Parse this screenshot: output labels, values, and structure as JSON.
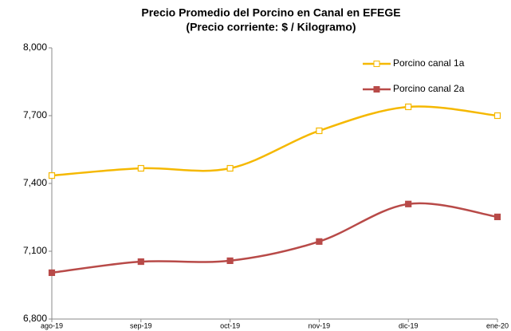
{
  "chart_data": {
    "type": "line",
    "title": "Precio Promedio del Porcino en Canal en EFEGE",
    "subtitle": "(Precio corriente: $ / Kilogramo)",
    "categories": [
      "ago-19",
      "sep-19",
      "oct-19",
      "nov-19",
      "dic-19",
      "ene-20"
    ],
    "series": [
      {
        "name": "Porcino canal 1a",
        "color": "#f5b800",
        "values": [
          7435,
          7467,
          7467,
          7633,
          7739,
          7700
        ]
      },
      {
        "name": "Porcino canal 2a",
        "color": "#b84a48",
        "values": [
          7005,
          7054,
          7058,
          7143,
          7309,
          7252
        ]
      }
    ],
    "ylim": [
      6800,
      8000
    ],
    "yticks": [
      {
        "value": 6800,
        "label": "6,800"
      },
      {
        "value": 7100,
        "label": "7,100"
      },
      {
        "value": 7400,
        "label": "7,400"
      },
      {
        "value": 7700,
        "label": "7,700"
      },
      {
        "value": 8000,
        "label": "8,000"
      }
    ],
    "grid": false,
    "legend": "top-right"
  }
}
